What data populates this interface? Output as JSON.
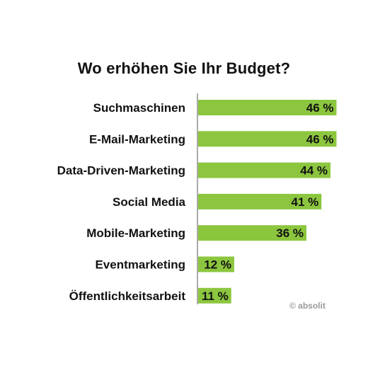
{
  "chart_data": {
    "type": "bar",
    "orientation": "horizontal",
    "title": "Wo erhöhen Sie Ihr Budget?",
    "categories": [
      "Suchmaschinen",
      "E-Mail-Marketing",
      "Data-Driven-Marketing",
      "Social Media",
      "Mobile-Marketing",
      "Eventmarketing",
      "Öffentlichkeitsarbeit"
    ],
    "values": [
      46,
      46,
      44,
      41,
      36,
      12,
      11
    ],
    "value_labels": [
      "46 %",
      "46 %",
      "44 %",
      "41 %",
      "36 %",
      "12 %",
      "11 %"
    ],
    "xlim": [
      0,
      100
    ],
    "grid": false,
    "bar_color": "#8cc63f",
    "source": "© absolit"
  }
}
